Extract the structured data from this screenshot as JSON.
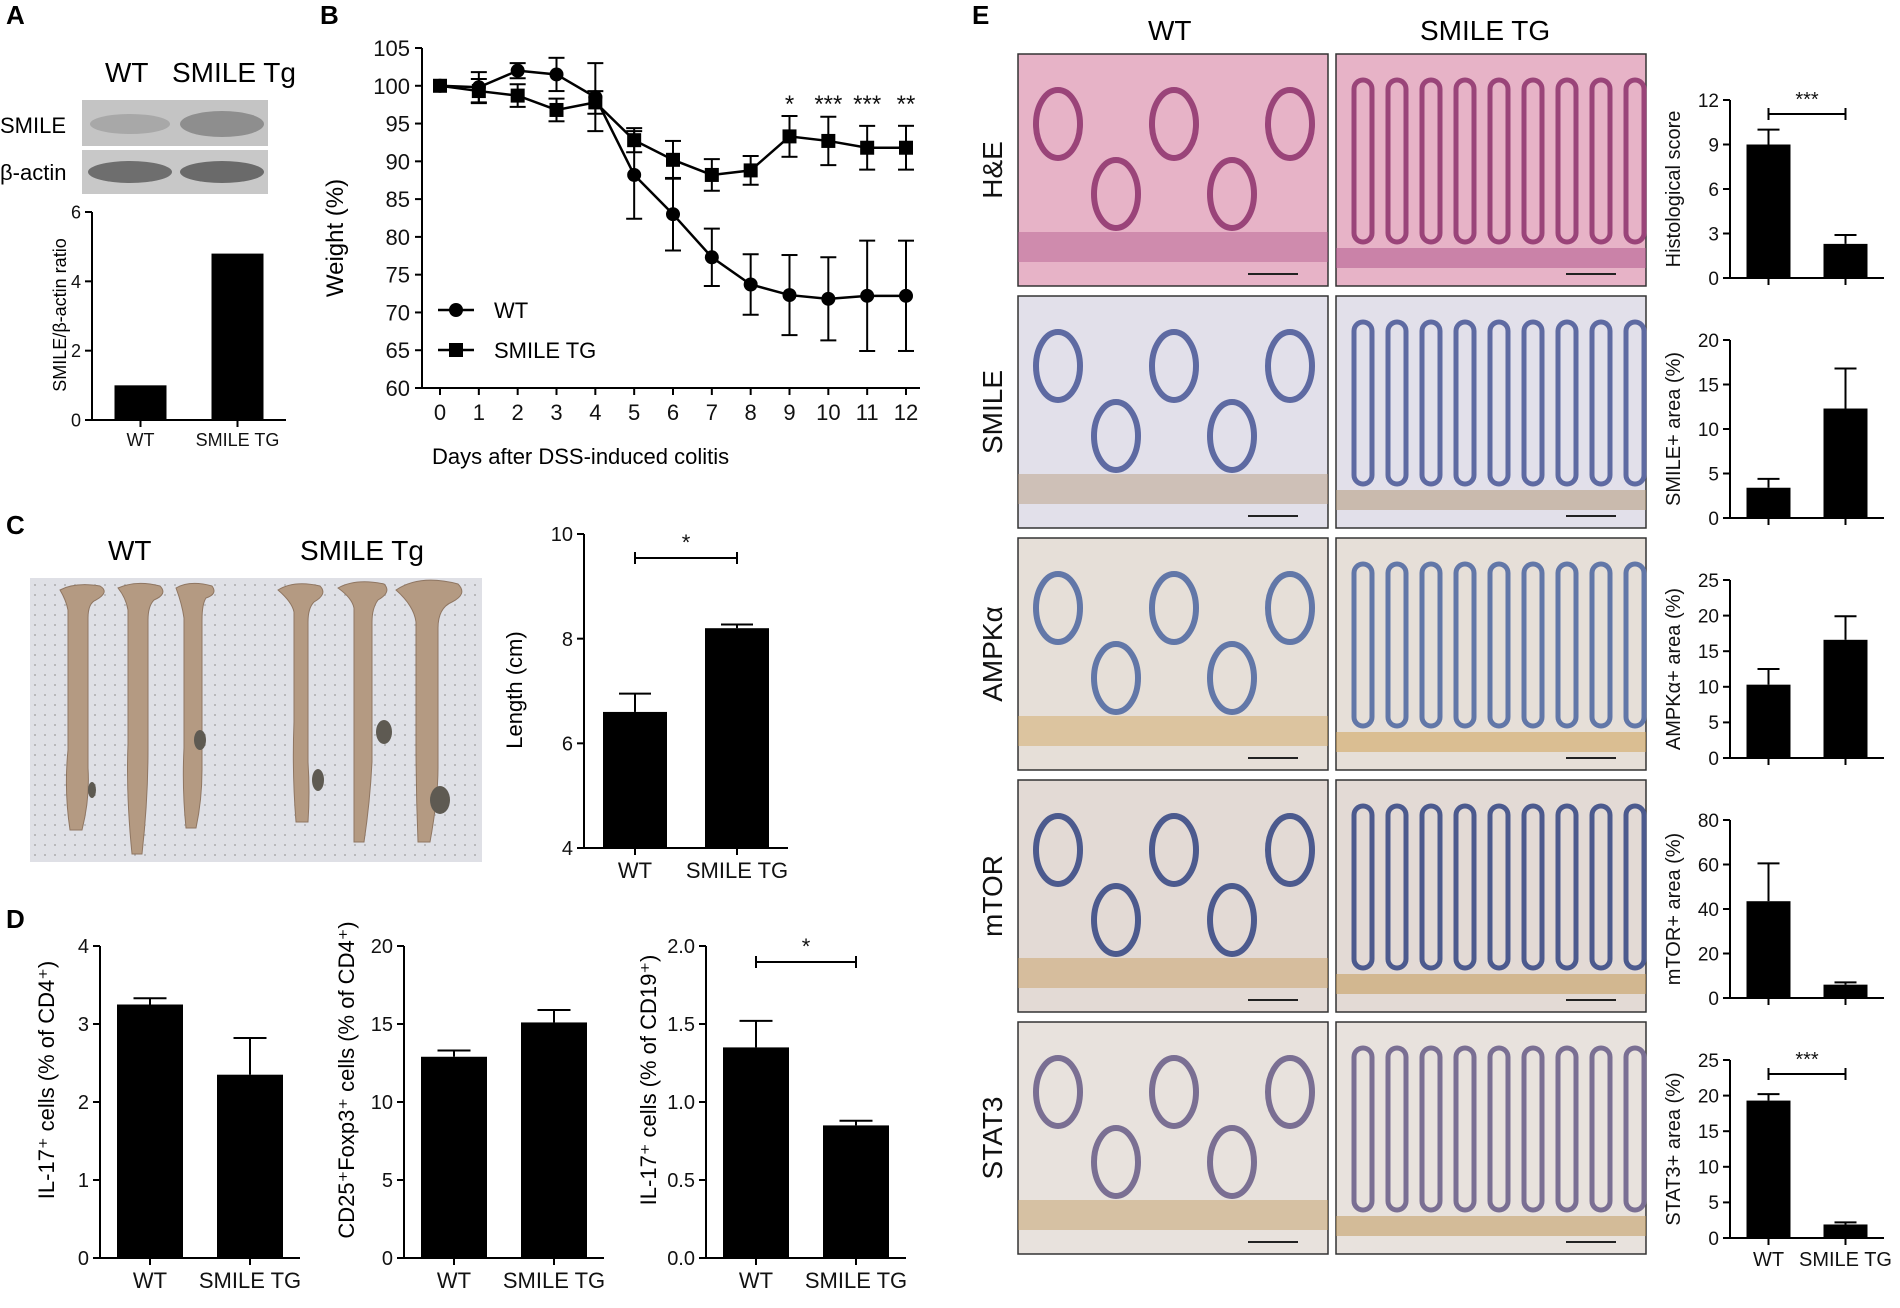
{
  "panels": {
    "A": {
      "letter": "A",
      "blot": {
        "headers": [
          "WT",
          "SMILE Tg"
        ],
        "rows": [
          "SMILE",
          "β-actin"
        ]
      },
      "bar": {
        "ylabel": "SMILE/β-actin ratio",
        "categories": [
          "WT",
          "SMILE TG"
        ],
        "ticks": [
          "0",
          "2",
          "4",
          "6"
        ]
      }
    },
    "B": {
      "letter": "B",
      "xlabel": "Days after DSS-induced colitis",
      "ylabel": "Weight (%)",
      "legend": [
        "WT",
        "SMILE TG"
      ],
      "ticks_y": [
        "60",
        "65",
        "70",
        "75",
        "80",
        "85",
        "90",
        "95",
        "100",
        "105"
      ],
      "ticks_x": [
        "0",
        "1",
        "2",
        "3",
        "4",
        "5",
        "6",
        "7",
        "8",
        "9",
        "10",
        "11",
        "12"
      ],
      "stars": [
        {
          "day": 9,
          "text": "*"
        },
        {
          "day": 10,
          "text": "***"
        },
        {
          "day": 11,
          "text": "***"
        },
        {
          "day": 12,
          "text": "**"
        }
      ]
    },
    "C": {
      "letter": "C",
      "photo_labels": [
        "WT",
        "SMILE Tg"
      ],
      "bar": {
        "ylabel": "Length (cm)",
        "categories": [
          "WT",
          "SMILE TG"
        ],
        "ticks": [
          "4",
          "6",
          "8",
          "10"
        ],
        "sig": "*"
      }
    },
    "D": {
      "letter": "D",
      "charts": [
        {
          "ylabel": "IL-17⁺ cells (% of CD4⁺)",
          "categories": [
            "WT",
            "SMILE TG"
          ],
          "ticks": [
            "0",
            "1",
            "2",
            "3",
            "4"
          ],
          "sig": ""
        },
        {
          "ylabel": "CD25⁺Foxp3⁺ cells (% of CD4⁺)",
          "categories": [
            "WT",
            "SMILE TG"
          ],
          "ticks": [
            "0",
            "5",
            "10",
            "15",
            "20"
          ],
          "sig": ""
        },
        {
          "ylabel": "IL-17⁺ cells (% of CD19⁺)",
          "categories": [
            "WT",
            "SMILE TG"
          ],
          "ticks": [
            "0.0",
            "0.5",
            "1.0",
            "1.5",
            "2.0"
          ],
          "sig": "*"
        }
      ]
    },
    "E": {
      "letter": "E",
      "column_headers": [
        "WT",
        "SMILE TG"
      ],
      "row_labels": [
        "H&E",
        "SMILE",
        "AMPKα",
        "mTOR",
        "STAT3"
      ],
      "charts": [
        {
          "ylabel": "Histological score",
          "ticks": [
            "0",
            "3",
            "6",
            "9",
            "12"
          ],
          "sig": "***"
        },
        {
          "ylabel": "SMILE+ area (%)",
          "ticks": [
            "0",
            "5",
            "10",
            "15",
            "20"
          ],
          "sig": ""
        },
        {
          "ylabel": "AMPKα+ area (%)",
          "ticks": [
            "0",
            "5",
            "10",
            "15",
            "20",
            "25"
          ],
          "sig": ""
        },
        {
          "ylabel": "mTOR+ area (%)",
          "ticks": [
            "0",
            "20",
            "40",
            "60",
            "80"
          ],
          "sig": ""
        },
        {
          "ylabel": "STAT3+ area (%)",
          "ticks": [
            "0",
            "5",
            "10",
            "15",
            "20",
            "25"
          ],
          "sig": "***"
        }
      ],
      "categories": [
        "WT",
        "SMILE TG"
      ]
    }
  },
  "chart_data": [
    {
      "id": "A-bar",
      "type": "bar",
      "categories": [
        "WT",
        "SMILE TG"
      ],
      "values": [
        1.0,
        4.8
      ],
      "ylabel": "SMILE/β-actin ratio",
      "ylim": [
        0,
        6
      ]
    },
    {
      "id": "B-line",
      "type": "line",
      "x": [
        0,
        1,
        2,
        3,
        4,
        5,
        6,
        7,
        8,
        9,
        10,
        11,
        12
      ],
      "series": [
        {
          "name": "WT",
          "values": [
            100,
            99.8,
            102,
            101.5,
            98.5,
            88.2,
            83,
            77.3,
            73.7,
            72.3,
            71.8,
            72.2,
            72.2
          ],
          "err": [
            0,
            2,
            1,
            2.2,
            4.5,
            5.8,
            4.8,
            3.8,
            4.0,
            5.3,
            5.5,
            7.3,
            7.3
          ]
        },
        {
          "name": "SMILE TG",
          "values": [
            100,
            99.3,
            98.7,
            96.8,
            97.8,
            92.8,
            90.2,
            88.2,
            88.8,
            93.3,
            92.7,
            91.8,
            91.8
          ],
          "err": [
            0,
            1.6,
            1.5,
            1.5,
            1.5,
            1.6,
            2.5,
            2.1,
            1.9,
            2.7,
            3.2,
            2.9,
            2.9
          ]
        }
      ],
      "xlabel": "Days after DSS-induced colitis",
      "ylabel": "Weight (%)",
      "ylim": [
        60,
        105
      ]
    },
    {
      "id": "C-bar",
      "type": "bar",
      "categories": [
        "WT",
        "SMILE TG"
      ],
      "values": [
        6.6,
        8.2
      ],
      "err": [
        0.35,
        0.07
      ],
      "ylabel": "Length (cm)",
      "ylim": [
        4,
        10
      ]
    },
    {
      "id": "D1",
      "type": "bar",
      "categories": [
        "WT",
        "SMILE TG"
      ],
      "values": [
        3.25,
        2.35
      ],
      "err": [
        0.08,
        0.47
      ],
      "ylim": [
        0,
        4
      ]
    },
    {
      "id": "D2",
      "type": "bar",
      "categories": [
        "WT",
        "SMILE TG"
      ],
      "values": [
        12.9,
        15.1
      ],
      "err": [
        0.4,
        0.8
      ],
      "ylim": [
        0,
        20
      ]
    },
    {
      "id": "D3",
      "type": "bar",
      "categories": [
        "WT",
        "SMILE TG"
      ],
      "values": [
        1.35,
        0.85
      ],
      "err": [
        0.17,
        0.03
      ],
      "ylim": [
        0,
        2
      ]
    },
    {
      "id": "E1",
      "type": "bar",
      "categories": [
        "WT",
        "SMILE TG"
      ],
      "values": [
        9.0,
        2.3
      ],
      "err": [
        1.0,
        0.6
      ],
      "ylim": [
        0,
        12
      ]
    },
    {
      "id": "E2",
      "type": "bar",
      "categories": [
        "WT",
        "SMILE TG"
      ],
      "values": [
        3.4,
        12.3
      ],
      "err": [
        1.0,
        4.5
      ],
      "ylim": [
        0,
        20
      ]
    },
    {
      "id": "E3",
      "type": "bar",
      "categories": [
        "WT",
        "SMILE TG"
      ],
      "values": [
        10.3,
        16.6
      ],
      "err": [
        2.2,
        3.3
      ],
      "ylim": [
        0,
        25
      ]
    },
    {
      "id": "E4",
      "type": "bar",
      "categories": [
        "WT",
        "SMILE TG"
      ],
      "values": [
        43.5,
        6.0
      ],
      "err": [
        17.0,
        1.0
      ],
      "ylim": [
        0,
        80
      ]
    },
    {
      "id": "E5",
      "type": "bar",
      "categories": [
        "WT",
        "SMILE TG"
      ],
      "values": [
        19.3,
        1.9
      ],
      "err": [
        0.9,
        0.3
      ],
      "ylim": [
        0,
        25
      ]
    }
  ]
}
